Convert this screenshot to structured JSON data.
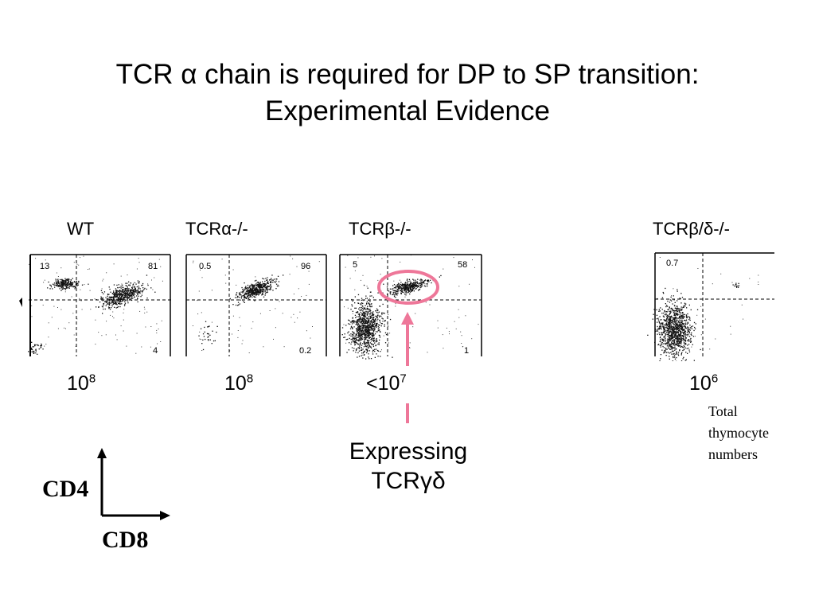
{
  "slide": {
    "title_line1": "TCR α chain is required for DP to SP transition:",
    "title_line2": "Experimental Evidence",
    "panels": [
      {
        "label": "WT",
        "tl": "13",
        "tr": "81",
        "br": "4",
        "cells_base": "10",
        "cells_exp": "8"
      },
      {
        "label": "TCRα-/-",
        "tl": "0.5",
        "tr": "96",
        "br": "0.2",
        "cells_base": "10",
        "cells_exp": "8"
      },
      {
        "label": "TCRβ-/-",
        "tl": "5",
        "tr": "58",
        "br": "1",
        "cells_base": "<10",
        "cells_exp": "7"
      },
      {
        "label": "TCRβ/δ-/-",
        "tl": "0.7",
        "tr": "",
        "br": "",
        "cells_base": "10",
        "cells_exp": "6"
      }
    ],
    "callout_line1": "Expressing",
    "callout_line2": "TCRγδ",
    "note_lines": [
      "Total",
      "thymocyte",
      "numbers"
    ],
    "y_axis_label": "CD4",
    "x_axis_label": "CD8",
    "highlight_color": "#ee7799"
  }
}
